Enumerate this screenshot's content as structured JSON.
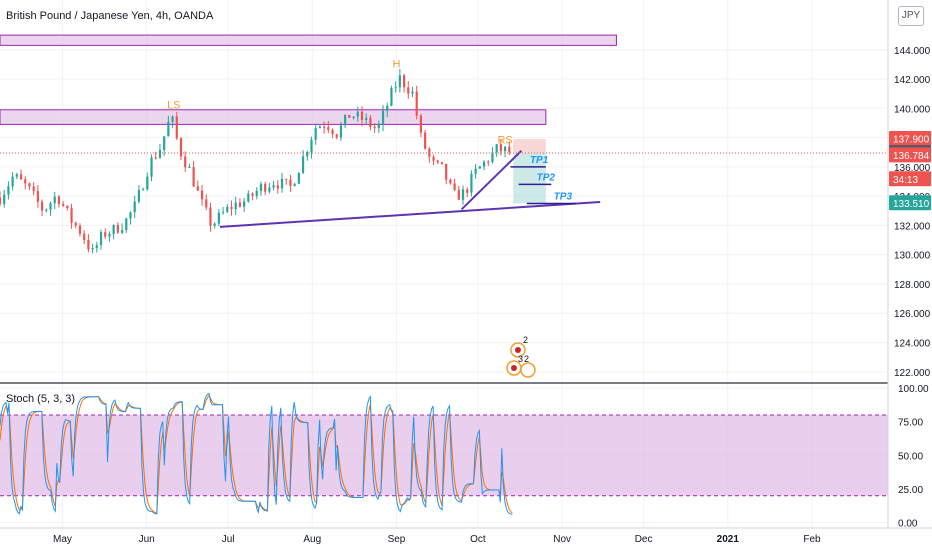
{
  "header": {
    "symbol_title": "British Pound / Japanese Yen, 4h, OANDA",
    "currency": "JPY"
  },
  "indicator": {
    "label": "Stoch (5, 3, 3)"
  },
  "colors": {
    "up": "#26a69a",
    "down": "#ef5350",
    "zone_fill": "#e1bee7",
    "zone_stroke": "#9c27b0",
    "trendline": "#5e35b1",
    "pattern_label": "#f0a030",
    "tp_label": "#2196f3",
    "stoch_k": "#2196f3",
    "stoch_d": "#ff6d00",
    "stoch_band": "#e1bee7"
  },
  "chart_data": {
    "type": "candlestick",
    "price_axis": {
      "range": [
        121.3,
        147.4
      ],
      "ticks": [
        "144.000",
        "142.000",
        "140.000",
        "138.000",
        "136.000",
        "134.000",
        "132.000",
        "130.000",
        "128.000",
        "126.000",
        "124.000",
        "122.000"
      ]
    },
    "time_axis": {
      "range": [
        "2020-04-08",
        "2021-03-01"
      ],
      "labels": [
        {
          "date": "2020-05-01",
          "text": "May"
        },
        {
          "date": "2020-06-01",
          "text": "Jun"
        },
        {
          "date": "2020-07-01",
          "text": "Jul"
        },
        {
          "date": "2020-08-01",
          "text": "Aug"
        },
        {
          "date": "2020-09-01",
          "text": "Sep"
        },
        {
          "date": "2020-10-01",
          "text": "Oct"
        },
        {
          "date": "2020-11-01",
          "text": "Nov"
        },
        {
          "date": "2020-12-01",
          "text": "Dec"
        },
        {
          "date": "2021-01-01",
          "text": "2021"
        },
        {
          "date": "2021-02-01",
          "text": "Feb"
        }
      ]
    },
    "price_path": [
      [
        "2020-04-08",
        133.9
      ],
      [
        "2020-04-13",
        135.4
      ],
      [
        "2020-04-18",
        134.6
      ],
      [
        "2020-04-24",
        133.0
      ],
      [
        "2020-04-29",
        134.1
      ],
      [
        "2020-05-04",
        132.4
      ],
      [
        "2020-05-08",
        131.5
      ],
      [
        "2020-05-12",
        130.1
      ],
      [
        "2020-05-16",
        131.4
      ],
      [
        "2020-05-20",
        131.7
      ],
      [
        "2020-05-24",
        132.2
      ],
      [
        "2020-05-28",
        133.4
      ],
      [
        "2020-06-02",
        136.2
      ],
      [
        "2020-06-06",
        137.3
      ],
      [
        "2020-06-10",
        139.5
      ],
      [
        "2020-06-13",
        137.2
      ],
      [
        "2020-06-17",
        135.7
      ],
      [
        "2020-06-21",
        133.6
      ],
      [
        "2020-06-25",
        132.0
      ],
      [
        "2020-06-29",
        132.8
      ],
      [
        "2020-07-03",
        133.4
      ],
      [
        "2020-07-08",
        133.7
      ],
      [
        "2020-07-13",
        134.6
      ],
      [
        "2020-07-18",
        135.0
      ],
      [
        "2020-07-24",
        134.6
      ],
      [
        "2020-07-29",
        136.8
      ],
      [
        "2020-08-02",
        138.7
      ],
      [
        "2020-08-06",
        139.0
      ],
      [
        "2020-08-10",
        138.3
      ],
      [
        "2020-08-15",
        139.6
      ],
      [
        "2020-08-20",
        139.2
      ],
      [
        "2020-08-25",
        138.5
      ],
      [
        "2020-08-30",
        140.9
      ],
      [
        "2020-09-02",
        142.1
      ],
      [
        "2020-09-07",
        141.0
      ],
      [
        "2020-09-10",
        138.0
      ],
      [
        "2020-09-14",
        136.2
      ],
      [
        "2020-09-18",
        135.8
      ],
      [
        "2020-09-22",
        134.0
      ],
      [
        "2020-09-26",
        134.2
      ],
      [
        "2020-09-30",
        135.6
      ],
      [
        "2020-10-04",
        136.4
      ],
      [
        "2020-10-08",
        137.2
      ],
      [
        "2020-10-11",
        137.1
      ],
      [
        "2020-10-14",
        136.9
      ]
    ],
    "zones": [
      {
        "from": "2020-04-08",
        "to": "2020-11-21",
        "low": 144.3,
        "high": 145.0
      },
      {
        "from": "2020-04-08",
        "to": "2020-10-26",
        "low": 138.9,
        "high": 139.9
      }
    ],
    "trendlines": [
      {
        "from": [
          "2020-06-28",
          131.9
        ],
        "to": [
          "2020-11-15",
          133.6
        ]
      },
      {
        "from": [
          "2020-09-25",
          133.1
        ],
        "to": [
          "2020-10-17",
          137.1
        ]
      }
    ],
    "pattern_labels": [
      {
        "text": "LS",
        "date": "2020-06-11",
        "price": 140.0
      },
      {
        "text": "H",
        "date": "2020-09-01",
        "price": 142.8
      },
      {
        "text": "RS",
        "date": "2020-10-11",
        "price": 137.6
      }
    ],
    "position": {
      "from": "2020-10-14",
      "to": "2020-10-26",
      "entry": 136.946,
      "stop": 137.9,
      "target": 133.51
    },
    "take_profits": [
      {
        "label": "TP1",
        "price": 136.0,
        "from": "2020-10-13",
        "to": "2020-10-26"
      },
      {
        "label": "TP2",
        "price": 134.8,
        "from": "2020-10-16",
        "to": "2020-10-28"
      },
      {
        "label": "TP3",
        "price": 133.5,
        "from": "2020-10-19",
        "to": "2020-11-06"
      }
    ],
    "price_labels": [
      {
        "text": "137.900",
        "price": 137.9,
        "color": "#ef5350"
      },
      {
        "text": "136.946",
        "price": 136.946,
        "color": "#555a66"
      },
      {
        "text": "136.784",
        "price": 136.784,
        "color": "#ef5350"
      },
      {
        "text": "34:13",
        "price": 135.15,
        "color": "#ef5350"
      },
      {
        "text": "133.510",
        "price": 133.51,
        "color": "#26a69a"
      }
    ],
    "stoch": {
      "range": [
        -4,
        103
      ],
      "ticks": [
        "100.00",
        "75.00",
        "50.00",
        "25.00",
        "0.00"
      ],
      "band": [
        20,
        80
      ]
    },
    "events": [
      {
        "date": "2020-10-15",
        "text": "2"
      },
      {
        "date": "2020-10-15",
        "text": "3"
      },
      {
        "date": "2020-10-16",
        "text": "2"
      }
    ]
  }
}
